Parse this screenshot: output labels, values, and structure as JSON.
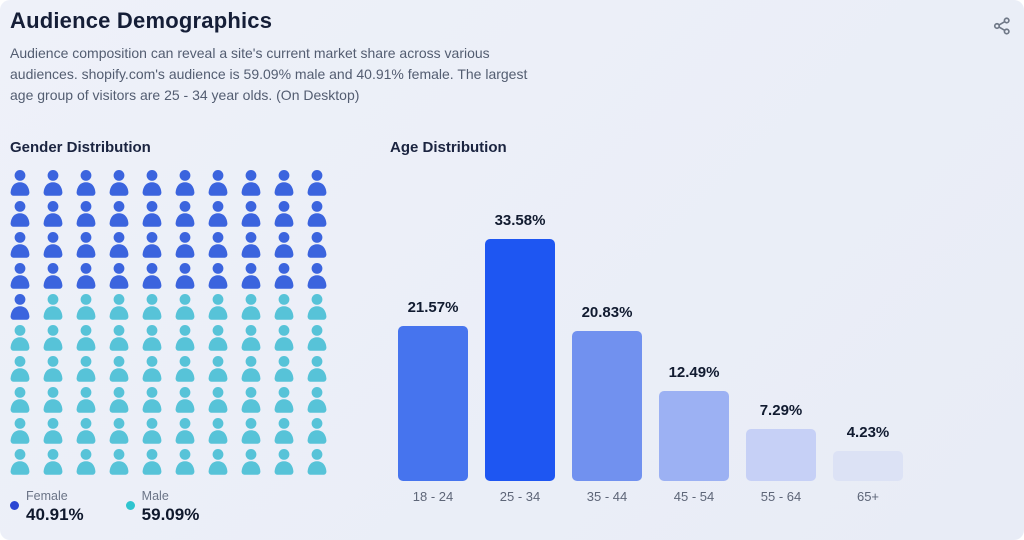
{
  "panel": {
    "title": "Audience Demographics",
    "description_lines": [
      "Audience composition can reveal a site's current market share across various",
      "audiences. shopify.com's audience is 59.09% male and 40.91% female. The largest",
      "age group of visitors are 25 - 34 year olds. (On Desktop)"
    ],
    "share_icon": "share-icon",
    "share_icon_color": "#6f7887"
  },
  "chart_data": [
    {
      "type": "pie",
      "render_hint": "pictogram-grid",
      "title": "Gender Distribution",
      "columns": 10,
      "total_icons": 100,
      "slices": [
        {
          "label": "Female",
          "value": 40.91,
          "display": "40.91%",
          "icon_count": 41,
          "icon_color": "#3b64de",
          "legend_dot_color": "#2b46d3"
        },
        {
          "label": "Male",
          "value": 59.09,
          "display": "59.09%",
          "icon_count": 59,
          "icon_color": "#57c3d8",
          "legend_dot_color": "#2fc4cf"
        }
      ],
      "legend_position": "bottom-left"
    },
    {
      "type": "bar",
      "title": "Age Distribution",
      "categories": [
        "18 - 24",
        "25 - 34",
        "35 - 44",
        "45 - 54",
        "55 - 64",
        "65+"
      ],
      "values": [
        21.57,
        33.58,
        20.83,
        12.49,
        7.29,
        4.23
      ],
      "value_labels": [
        "21.57%",
        "33.58%",
        "20.83%",
        "12.49%",
        "7.29%",
        "4.23%"
      ],
      "bar_colors": [
        "#4674ee",
        "#1e56f2",
        "#7191ef",
        "#9cb1f3",
        "#c6d0f6",
        "#dce2f5"
      ],
      "xlabel": "",
      "ylabel": "",
      "ylim": [
        0,
        35
      ],
      "grid": false,
      "legend": "none",
      "data_labels": "above-bars"
    }
  ]
}
